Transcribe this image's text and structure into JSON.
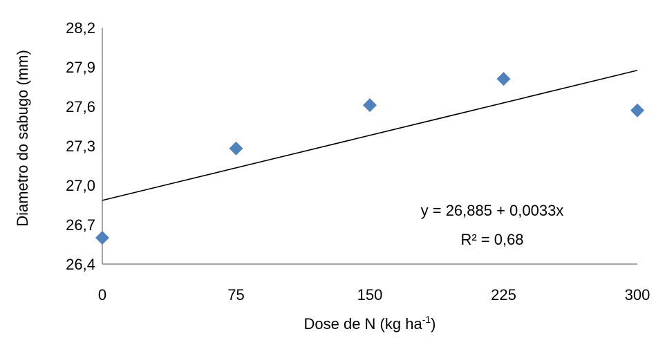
{
  "chart_data": {
    "type": "scatter",
    "xlabel": "Dose de N (kg ha",
    "xlabel_sup": "-1",
    "xlabel_end": ")",
    "ylabel": "Diametro do sabugo (mm)",
    "x_ticks": [
      "0",
      "75",
      "150",
      "225",
      "300"
    ],
    "y_ticks": [
      "26,4",
      "26,7",
      "27,0",
      "27,3",
      "27,6",
      "27,9",
      "28,2"
    ],
    "xlim": [
      0,
      300
    ],
    "ylim": [
      26.4,
      28.2
    ],
    "grid": false,
    "marker_color": "#4F81BD",
    "trend_color": "#000000",
    "series": [
      {
        "x": [
          0,
          75,
          150,
          225,
          300
        ],
        "y": [
          26.6,
          27.28,
          27.61,
          27.81,
          27.57
        ]
      }
    ],
    "trendline": {
      "intercept": 26.885,
      "slope": 0.0033
    },
    "equation": "y = 26,885  + 0,0033x",
    "r2": "R² = 0,68"
  }
}
